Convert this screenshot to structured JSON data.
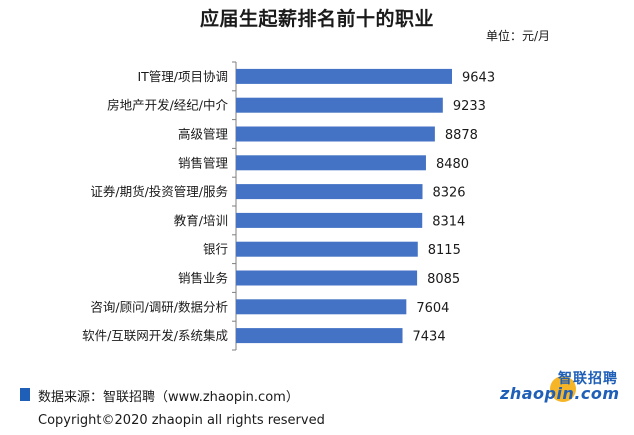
{
  "page": {
    "title": "应届生起薪排名前十的职业",
    "unit": "单位：元/月",
    "source": "数据来源：智联招聘（www.zhaopin.com）",
    "copyright": "Copyright©2020  zhaopin all rights reserved",
    "logo_cn": "智联招聘",
    "logo_en": "zhaopin.com"
  },
  "colors": {
    "bar": "#4472C4",
    "accent": "#1f5fb8",
    "logo_orange": "#f5a800"
  },
  "chart_data": {
    "type": "bar",
    "orientation": "horizontal",
    "title": "应届生起薪排名前十的职业",
    "unit": "单位：元/月",
    "categories": [
      "IT管理/项目协调",
      "房地产开发/经纪/中介",
      "高级管理",
      "销售管理",
      "证券/期货/投资管理/服务",
      "教育/培训",
      "银行",
      "销售业务",
      "咨询/顾问/调研/数据分析",
      "软件/互联网开发/系统集成"
    ],
    "values": [
      9643,
      9233,
      8878,
      8480,
      8326,
      8314,
      8115,
      8085,
      7604,
      7434
    ],
    "xlim": [
      0,
      10000
    ],
    "grid": false,
    "legend": "none"
  }
}
